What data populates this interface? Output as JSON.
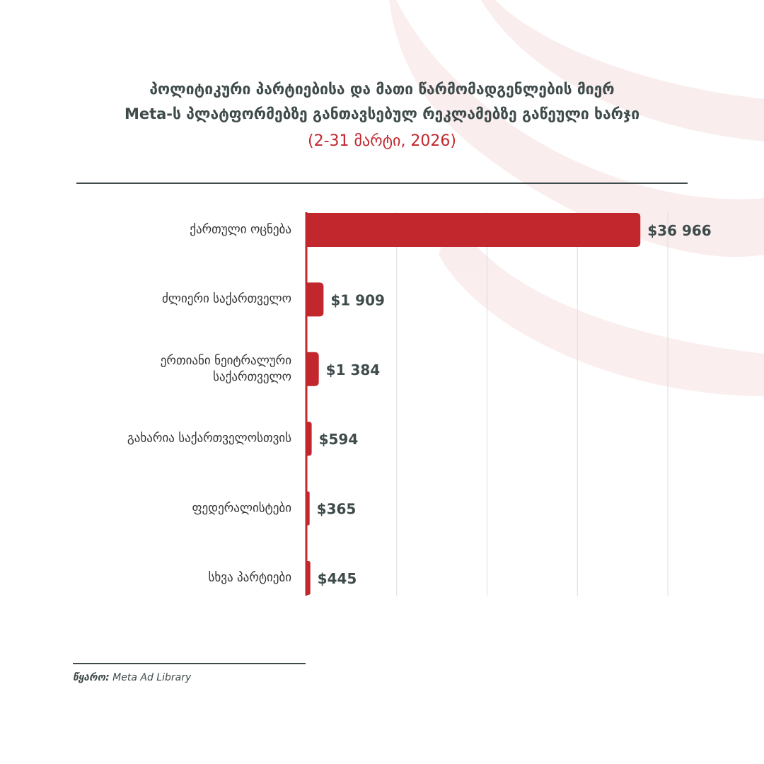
{
  "chart_data": {
    "type": "bar",
    "orientation": "horizontal",
    "title": [
      "პოლიტიკური პარტიებისა და მათი წარმომადგენლების მიერ",
      "Meta-ს პლატფორმებზე განთავსებულ რეკლამებზე გაწეული ხარჯი"
    ],
    "subtitle": "(2-31 მარტი, 2026)",
    "categories": [
      "ქართული ოცნება",
      "ძლიერი საქართველო",
      "ერთიანი ნეიტრალური საქართველო",
      "გახარია საქართველოსთვის",
      "ფედერალისტები",
      "სხვა პარტიები"
    ],
    "values": [
      36966,
      1909,
      1384,
      594,
      365,
      445
    ],
    "value_labels": [
      "$36 966",
      "$1 909",
      "$1 384",
      "$594",
      "$365",
      "$445"
    ],
    "color": "#c1272d",
    "xlim": [
      0,
      40000
    ],
    "xticks": [
      0,
      10000,
      20000,
      30000,
      40000
    ],
    "grid": true,
    "source_label": "წყარო:",
    "source": "Meta Ad Library"
  }
}
